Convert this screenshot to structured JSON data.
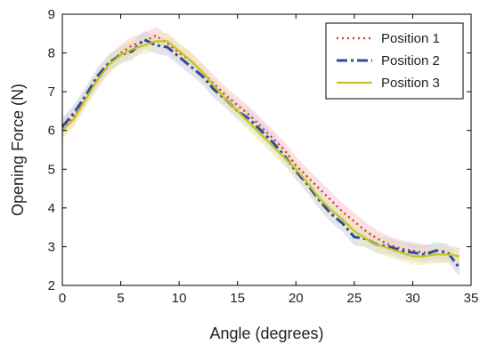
{
  "chart_data": {
    "type": "line",
    "xlabel": "Angle (degrees)",
    "ylabel": "Opening Force (N)",
    "xlim": [
      0,
      35
    ],
    "ylim": [
      2,
      9
    ],
    "xticks": [
      0,
      5,
      10,
      15,
      20,
      25,
      30,
      35
    ],
    "yticks": [
      2,
      3,
      4,
      5,
      6,
      7,
      8,
      9
    ],
    "grid": false,
    "legend": "top-right",
    "series": [
      {
        "name": "Position 1",
        "color": "#e8262c",
        "style": "dotted",
        "band_color": "#f7c7cf",
        "x": [
          0,
          1,
          2,
          3,
          4,
          5,
          6,
          7,
          8,
          9,
          10,
          11,
          12,
          13,
          14,
          15,
          16,
          17,
          18,
          19,
          20,
          21,
          22,
          23,
          24,
          25,
          26,
          27,
          28,
          29,
          30,
          31,
          32,
          33,
          34
        ],
        "y": [
          6.05,
          6.35,
          6.85,
          7.3,
          7.7,
          8.0,
          8.2,
          8.3,
          8.45,
          8.25,
          8.0,
          7.8,
          7.5,
          7.2,
          6.9,
          6.65,
          6.4,
          6.1,
          5.8,
          5.5,
          5.1,
          4.8,
          4.5,
          4.2,
          3.9,
          3.65,
          3.4,
          3.2,
          3.05,
          2.95,
          2.9,
          2.85,
          2.8,
          2.8,
          2.75
        ]
      },
      {
        "name": "Position 2",
        "color": "#2b4ba8",
        "style": "dashdot",
        "band_color": "#c8cdec",
        "x": [
          0,
          1,
          2,
          3,
          4,
          5,
          6,
          7,
          8,
          9,
          10,
          11,
          12,
          13,
          14,
          15,
          16,
          17,
          18,
          19,
          20,
          21,
          22,
          23,
          24,
          25,
          26,
          27,
          28,
          29,
          30,
          31,
          32,
          33,
          34
        ],
        "y": [
          6.1,
          6.45,
          6.9,
          7.4,
          7.75,
          7.95,
          8.05,
          8.35,
          8.2,
          8.15,
          7.9,
          7.65,
          7.4,
          7.05,
          6.8,
          6.5,
          6.3,
          6.0,
          5.7,
          5.35,
          4.95,
          4.6,
          4.2,
          3.85,
          3.6,
          3.25,
          3.2,
          3.05,
          3.0,
          2.9,
          2.85,
          2.8,
          2.9,
          2.85,
          2.45
        ]
      },
      {
        "name": "Position 3",
        "color": "#c8c321",
        "style": "solid",
        "band_color": "#ecebb0",
        "x": [
          0,
          1,
          2,
          3,
          4,
          5,
          6,
          7,
          8,
          9,
          10,
          11,
          12,
          13,
          14,
          15,
          16,
          17,
          18,
          19,
          20,
          21,
          22,
          23,
          24,
          25,
          26,
          27,
          28,
          29,
          30,
          31,
          32,
          33,
          34
        ],
        "y": [
          6.0,
          6.3,
          6.8,
          7.3,
          7.7,
          7.95,
          8.1,
          8.2,
          8.3,
          8.3,
          8.05,
          7.8,
          7.5,
          7.15,
          6.8,
          6.5,
          6.2,
          5.9,
          5.6,
          5.3,
          5.0,
          4.65,
          4.25,
          3.95,
          3.7,
          3.4,
          3.2,
          3.05,
          2.95,
          2.85,
          2.75,
          2.75,
          2.8,
          2.8,
          2.75
        ]
      }
    ]
  }
}
